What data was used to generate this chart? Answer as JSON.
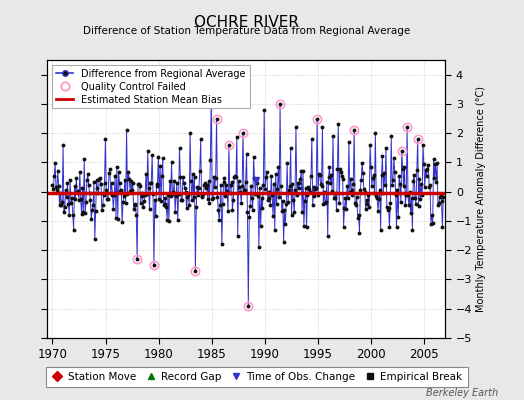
{
  "title": "OCHRE RIVER",
  "subtitle": "Difference of Station Temperature Data from Regional Average",
  "ylabel": "Monthly Temperature Anomaly Difference (°C)",
  "xlim": [
    1969.5,
    2007.0
  ],
  "ylim": [
    -5,
    4.5
  ],
  "yticks": [
    -4,
    -3,
    -2,
    -1,
    0,
    1,
    2,
    3,
    4
  ],
  "xticks": [
    1970,
    1975,
    1980,
    1985,
    1990,
    1995,
    2000,
    2005
  ],
  "bias_level": -0.05,
  "background_color": "#e8e8e8",
  "plot_bg_color": "#ffffff",
  "line_color": "#3333cc",
  "bias_color": "#cc0000",
  "qc_color": "#ff99cc",
  "watermark": "Berkeley Earth",
  "seed": 42,
  "n_points": 444,
  "start_year": 1970.0,
  "end_year": 2006.8
}
